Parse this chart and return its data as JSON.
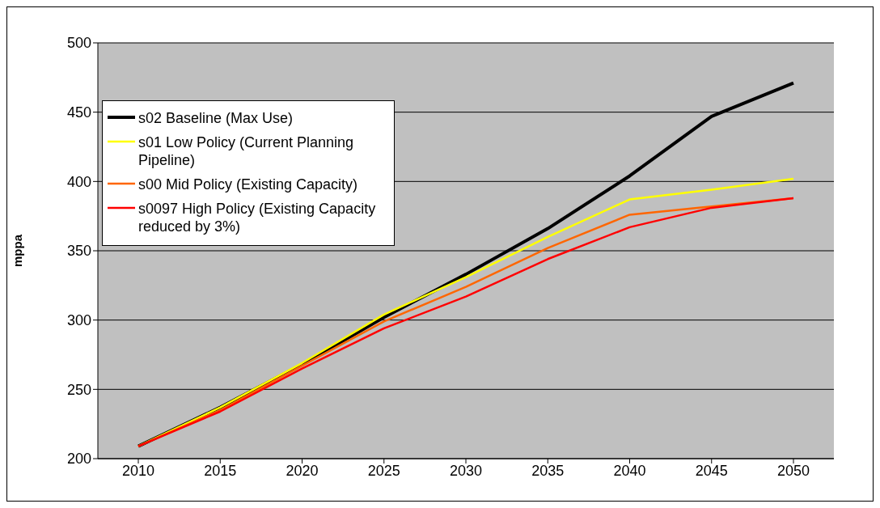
{
  "chart_data": {
    "type": "line",
    "ylabel": "mppa",
    "categories": [
      "2010",
      "2015",
      "2020",
      "2025",
      "2030",
      "2035",
      "2040",
      "2045",
      "2050"
    ],
    "series": [
      {
        "name": "s02 Baseline (Max Use)",
        "color": "#000000",
        "values": [
          209,
          237,
          268,
          302,
          333,
          366,
          404,
          447,
          471
        ]
      },
      {
        "name": "s01 Low Policy (Current Planning Pipeline)",
        "color": "#ffff00",
        "values": [
          209,
          237,
          269,
          304,
          331,
          360,
          387,
          394,
          402
        ]
      },
      {
        "name": "s00 Mid Policy (Existing Capacity)",
        "color": "#ff6600",
        "values": [
          209,
          235,
          267,
          299,
          324,
          352,
          376,
          382,
          388
        ]
      },
      {
        "name": "s0097 High Policy (Existing Capacity reduced by 3%)",
        "color": "#ff0000",
        "values": [
          209,
          234,
          265,
          294,
          317,
          344,
          367,
          381,
          388
        ]
      }
    ],
    "ylim": [
      200,
      500
    ],
    "yticks": [
      200,
      250,
      300,
      350,
      400,
      450,
      500
    ],
    "grid": "y",
    "legend": "top left",
    "marker": "none",
    "line_style": "solid"
  }
}
